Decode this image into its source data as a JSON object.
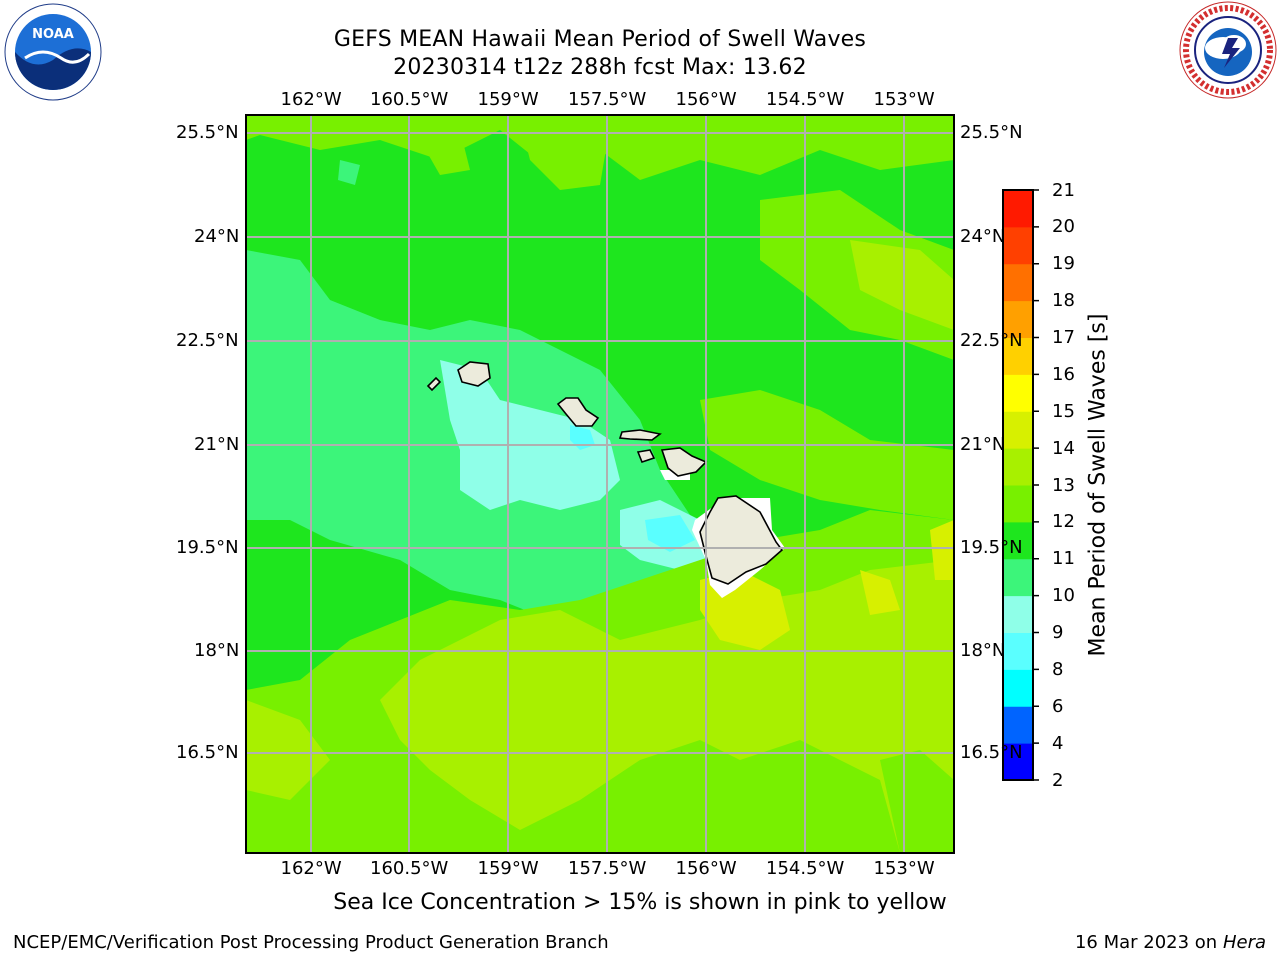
{
  "title": {
    "line1": "GEFS MEAN Hawaii Mean Period of Swell Waves",
    "line2": "20230314 t12z 288h fcst   Max: 13.62"
  },
  "map": {
    "lon_labels": [
      "162°W",
      "160.5°W",
      "159°W",
      "157.5°W",
      "156°W",
      "154.5°W",
      "153°W"
    ],
    "lat_labels": [
      "25.5°N",
      "24°N",
      "22.5°N",
      "21°N",
      "19.5°N",
      "18°N",
      "16.5°N"
    ],
    "field_colors": {
      "c8": "#5affff",
      "c9": "#8fffe8",
      "c10": "#3cf57a",
      "c11": "#1ee61e",
      "c12": "#78f000",
      "c13": "#a8f000",
      "c14": "#d7f000",
      "c15": "#ffff00",
      "land": "#ecebdc",
      "grid": "#b0b0b0"
    }
  },
  "colorbar": {
    "label": "Mean Period of Swell Waves [s]",
    "ticks": [
      "2",
      "4",
      "6",
      "8",
      "9",
      "10",
      "11",
      "12",
      "13",
      "14",
      "15",
      "16",
      "17",
      "18",
      "19",
      "20",
      "21"
    ],
    "colors": [
      "#0000ff",
      "#0064ff",
      "#00ffff",
      "#5affff",
      "#8fffe8",
      "#3cf57a",
      "#1ee61e",
      "#78f000",
      "#a8f000",
      "#d7f000",
      "#ffff00",
      "#ffd000",
      "#ffa000",
      "#ff7000",
      "#ff4000",
      "#ff1a00"
    ]
  },
  "logos": {
    "left": "noaa-logo",
    "left_text": "NOAA",
    "right": "nws-logo",
    "right_text": "NATIONAL WEATHER SERVICE"
  },
  "footer": {
    "note": "Sea Ice Concentration > 15% is shown in pink to yellow",
    "left": "NCEP/EMC/Verification Post Processing Product Generation Branch",
    "right_date": "16 Mar 2023 on",
    "right_host": "Hera"
  }
}
